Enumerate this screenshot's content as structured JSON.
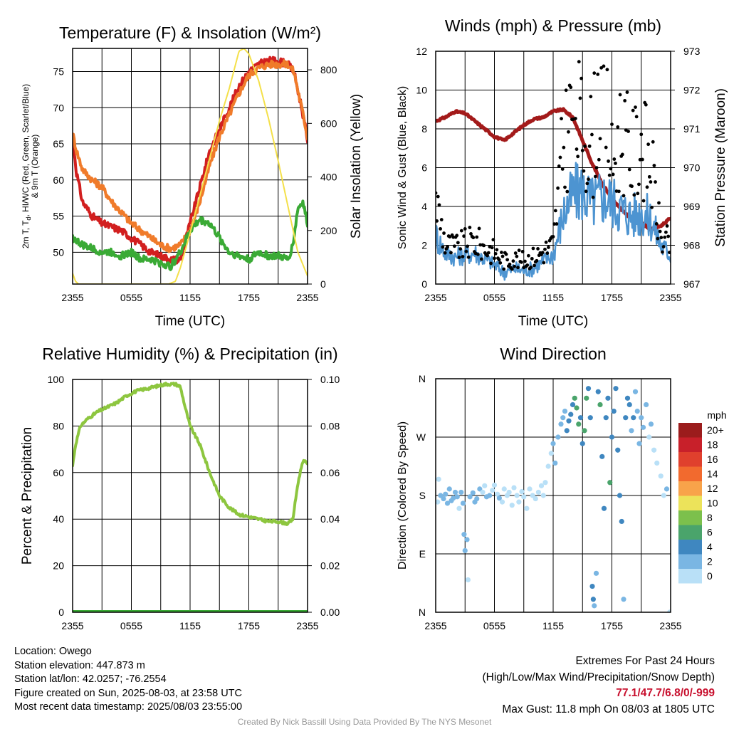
{
  "chart_data": [
    {
      "type": "line",
      "title": "Temperature (F) & Insolation (W/m²)",
      "xlabel": "Time (UTC)",
      "ylabel": "2m T, Td, HI/WC (Red, Green, Scarlet/Blue) & 9m T (Orange)",
      "ylabel_lines": [
        "2m T, T",
        "d",
        ", HI/WC (Red, Green, Scarlet/Blue)",
        "& 9m T (Orange)"
      ],
      "y2label": "Solar Insolation (Yellow)",
      "x_ticks": [
        "2355",
        "0555",
        "1155",
        "1755",
        "2355"
      ],
      "y_ticks": [
        50,
        55,
        60,
        65,
        70,
        75
      ],
      "y2_ticks": [
        0,
        200,
        400,
        600,
        800
      ],
      "ylim": [
        45.6,
        78.2
      ],
      "y2lim": [
        0,
        880
      ],
      "xlim_hours": [
        0,
        24
      ],
      "grid": true,
      "series": [
        {
          "color": "#d21f1f",
          "x": [
            0,
            0.4,
            1,
            2,
            3,
            4,
            5,
            6,
            7,
            8,
            9,
            10,
            11,
            12,
            13,
            14,
            15,
            16,
            17,
            18,
            19,
            20,
            21,
            22,
            22.6,
            23.4,
            24
          ],
          "values": [
            66,
            61,
            57,
            55,
            54,
            53.5,
            53,
            52,
            51,
            50,
            49.5,
            49,
            49,
            54,
            59,
            64,
            67,
            70,
            73,
            75,
            76,
            76.5,
            76.5,
            76,
            75,
            70,
            65.5
          ]
        },
        {
          "color": "#f07b2a",
          "x": [
            0,
            0.4,
            1,
            2,
            3,
            4,
            5,
            6,
            7,
            8,
            9,
            10,
            11,
            12,
            13,
            14,
            15,
            16,
            17,
            18,
            19,
            20,
            21,
            22,
            22.6,
            23.4,
            24
          ],
          "values": [
            66.5,
            64,
            61.5,
            60,
            59,
            57,
            55.5,
            54,
            53,
            52,
            51,
            50.5,
            51,
            53,
            57,
            62,
            66,
            69,
            72,
            74.5,
            75.5,
            76,
            76,
            76,
            75,
            70,
            66
          ]
        },
        {
          "color": "#3aaa35",
          "x": [
            0,
            1,
            2,
            3,
            4,
            5,
            6,
            7,
            8,
            9,
            10,
            11,
            12,
            13,
            14,
            15,
            16,
            17,
            18,
            19,
            20,
            21,
            22,
            22.5,
            23,
            23.5,
            24
          ],
          "values": [
            52,
            51,
            50.5,
            50,
            50,
            49.5,
            50,
            49,
            49,
            48.5,
            48,
            50,
            53,
            54.5,
            54,
            52,
            50,
            49.5,
            49,
            50,
            49.5,
            49.5,
            49,
            51,
            56,
            57,
            54
          ]
        },
        {
          "color": "#f4e04a",
          "axis": "y2",
          "x": [
            0,
            0.3,
            0.6,
            9.0,
            9.8,
            10.5,
            11.0,
            12,
            13,
            14,
            15,
            16,
            16.5,
            17,
            17.5,
            18,
            19,
            20,
            21,
            22,
            23,
            24
          ],
          "values": [
            40,
            10,
            0,
            0,
            0,
            10,
            60,
            190,
            330,
            470,
            610,
            730,
            800,
            870,
            880,
            860,
            760,
            620,
            460,
            290,
            120,
            30
          ]
        }
      ]
    },
    {
      "type": "line",
      "title": "Winds (mph) & Pressure (mb)",
      "xlabel": "Time (UTC)",
      "ylabel": "Sonic Wind & Gust (Blue, Black)",
      "y2label": "Station Pressure (Maroon)",
      "x_ticks": [
        "2355",
        "0555",
        "1155",
        "1755",
        "2355"
      ],
      "y_ticks": [
        0,
        2,
        4,
        6,
        8,
        10,
        12
      ],
      "y2_ticks": [
        967,
        968,
        969,
        970,
        971,
        972,
        973
      ],
      "ylim": [
        0,
        12
      ],
      "y2lim": [
        967,
        973
      ],
      "grid": true,
      "series": [
        {
          "color": "#a31a1a",
          "axis": "y2",
          "x": [
            0,
            1,
            2,
            3,
            4,
            5,
            6,
            7,
            8,
            9,
            10,
            11,
            12,
            13,
            14,
            15,
            16,
            17,
            18,
            19,
            20,
            21,
            22,
            23,
            24
          ],
          "values": [
            971.2,
            971.3,
            971.45,
            971.4,
            971.2,
            971.0,
            970.8,
            970.7,
            970.9,
            971.1,
            971.25,
            971.3,
            971.45,
            971.5,
            971.3,
            970.7,
            970.1,
            969.6,
            969.2,
            968.9,
            968.7,
            968.6,
            968.4,
            968.5,
            968.7
          ]
        },
        {
          "color": "#4d94d1",
          "x": [
            0,
            1,
            2,
            3,
            4,
            5,
            6,
            7,
            8,
            9,
            10,
            11,
            12,
            13,
            14,
            15,
            16,
            17,
            18,
            19,
            20,
            21,
            22,
            23,
            24
          ],
          "values": [
            2.5,
            1.6,
            1.4,
            1.5,
            1.6,
            1.3,
            1.0,
            0.6,
            0.8,
            0.7,
            0.8,
            1.2,
            1.5,
            3.5,
            4.6,
            4.8,
            4.2,
            4.5,
            4.3,
            3.8,
            3.5,
            3.7,
            3.3,
            2.0,
            1.5
          ]
        },
        {
          "color": "#000000",
          "style": "dots",
          "x": [
            0,
            1,
            2,
            3,
            4,
            5,
            6,
            7,
            8,
            9,
            10,
            11,
            12,
            13,
            14,
            15,
            16,
            17,
            18,
            19,
            20,
            21,
            22,
            23,
            24
          ],
          "values": [
            4.8,
            2.2,
            2.0,
            2.2,
            2.4,
            2.0,
            1.8,
            1.3,
            1.4,
            1.3,
            1.5,
            1.8,
            2.2,
            7.5,
            10.0,
            8.5,
            7.8,
            11.8,
            6.5,
            8.5,
            7.0,
            8.0,
            6.5,
            2.5,
            2.2
          ]
        }
      ]
    },
    {
      "type": "line",
      "title": "Relative Humidity (%) & Precipitation (in)",
      "ylabel": "Percent & Precipitation",
      "x_ticks": [
        "2355",
        "0555",
        "1155",
        "1755",
        "2355"
      ],
      "y_ticks": [
        0,
        20,
        40,
        60,
        80,
        100
      ],
      "y2_ticks": [
        "0.00",
        "0.02",
        "0.04",
        "0.06",
        "0.08",
        "0.10"
      ],
      "ylim": [
        0,
        100
      ],
      "y2lim": [
        0,
        0.1
      ],
      "grid": true,
      "series": [
        {
          "color": "#8dc63f",
          "x": [
            0,
            0.3,
            0.8,
            1.5,
            2.5,
            3.5,
            4.5,
            5.5,
            6.5,
            7.5,
            8.5,
            9.5,
            10.5,
            11.0,
            11.5,
            12,
            13,
            14,
            15,
            16,
            17,
            18,
            19,
            20,
            21,
            22,
            22.5,
            23,
            23.5,
            24
          ],
          "values": [
            63,
            72,
            80,
            83,
            86,
            88,
            90,
            93,
            95,
            96,
            97,
            98,
            98,
            97,
            88,
            80,
            72,
            60,
            50,
            45,
            42,
            41,
            40,
            39,
            39,
            38,
            40,
            55,
            65,
            64
          ]
        },
        {
          "color": "#3aaa35",
          "x": [
            0,
            24
          ],
          "values": [
            0,
            0
          ]
        }
      ]
    },
    {
      "type": "scatter",
      "title": "Wind Direction",
      "ylabel": "Direction (Colored By Speed)",
      "x_ticks": [
        "2355",
        "0555",
        "1155",
        "1755",
        "2355"
      ],
      "y_ticks": [
        "N",
        "E",
        "S",
        "W",
        "N"
      ],
      "ylim": [
        0,
        360
      ],
      "grid": true,
      "legend": {
        "title": "mph",
        "position": "right",
        "labels": [
          "20+",
          "18",
          "16",
          "14",
          "12",
          "10",
          "8",
          "6",
          "4",
          "2",
          "0"
        ],
        "colors": [
          "#9b1c1c",
          "#c8202a",
          "#e0402d",
          "#f26a2e",
          "#f8a34a",
          "#ece35a",
          "#7cc04c",
          "#4aa46b",
          "#3f87c0",
          "#7ab6e3",
          "#b9e0f7"
        ]
      },
      "points": [
        [
          0.2,
          170,
          0.5
        ],
        [
          0.3,
          205,
          0.3
        ],
        [
          0.5,
          180,
          1.5
        ],
        [
          0.8,
          175,
          1.5
        ],
        [
          1.0,
          182,
          2.0
        ],
        [
          1.2,
          168,
          1.2
        ],
        [
          1.4,
          190,
          1.0
        ],
        [
          1.6,
          172,
          1.8
        ],
        [
          1.8,
          176,
          2.2
        ],
        [
          2.0,
          185,
          1.0
        ],
        [
          2.2,
          178,
          1.5
        ],
        [
          2.4,
          160,
          0.8
        ],
        [
          2.6,
          185,
          2.0
        ],
        [
          2.8,
          168,
          2.5
        ],
        [
          2.9,
          120,
          1.5
        ],
        [
          3.0,
          95,
          1.0
        ],
        [
          3.2,
          112,
          1.2
        ],
        [
          3.3,
          50,
          0.8
        ],
        [
          3.5,
          178,
          1.6
        ],
        [
          3.8,
          184,
          2.0
        ],
        [
          4.0,
          170,
          2.5
        ],
        [
          4.2,
          175,
          1.5
        ],
        [
          4.5,
          190,
          1.0
        ],
        [
          4.8,
          185,
          0.5
        ],
        [
          5.0,
          195,
          0.6
        ],
        [
          5.2,
          178,
          1.4
        ],
        [
          5.5,
          180,
          1.0
        ],
        [
          5.8,
          188,
          0.8
        ],
        [
          6.0,
          196,
          0.5
        ],
        [
          6.3,
          182,
          0.8
        ],
        [
          6.5,
          176,
          1.0
        ],
        [
          6.8,
          170,
          0.6
        ],
        [
          7.0,
          190,
          0.9
        ],
        [
          7.3,
          180,
          0.4
        ],
        [
          7.5,
          185,
          0.6
        ],
        [
          7.8,
          165,
          0.3
        ],
        [
          8.0,
          192,
          0.7
        ],
        [
          8.3,
          180,
          0.4
        ],
        [
          8.5,
          170,
          0.8
        ],
        [
          8.8,
          186,
          0.5
        ],
        [
          9.0,
          178,
          0.6
        ],
        [
          9.3,
          160,
          0.4
        ],
        [
          9.6,
          190,
          0.5
        ],
        [
          9.9,
          180,
          0.6
        ],
        [
          10.2,
          175,
          0.5
        ],
        [
          10.5,
          185,
          0.4
        ],
        [
          10.8,
          195,
          0.7
        ],
        [
          11.0,
          180,
          0.5
        ],
        [
          11.2,
          200,
          0.6
        ],
        [
          11.5,
          225,
          0.8
        ],
        [
          11.8,
          245,
          0.7
        ],
        [
          12.0,
          260,
          1.0
        ],
        [
          12.2,
          230,
          1.2
        ],
        [
          12.5,
          270,
          1.4
        ],
        [
          12.8,
          290,
          1.6
        ],
        [
          13.0,
          300,
          2.0
        ],
        [
          13.2,
          310,
          2.5
        ],
        [
          13.4,
          280,
          3.0
        ],
        [
          13.6,
          295,
          3.5
        ],
        [
          13.8,
          305,
          4.5
        ],
        [
          14.0,
          320,
          4.8
        ],
        [
          14.2,
          330,
          5.5
        ],
        [
          14.4,
          315,
          6.0
        ],
        [
          14.6,
          290,
          5.0
        ],
        [
          14.8,
          300,
          4.0
        ],
        [
          15.0,
          260,
          3.5
        ],
        [
          15.2,
          280,
          6.5
        ],
        [
          15.4,
          330,
          5.0
        ],
        [
          15.6,
          345,
          4.5
        ],
        [
          15.8,
          300,
          3.0
        ],
        [
          16.0,
          40,
          3.5
        ],
        [
          16.1,
          20,
          3.0
        ],
        [
          16.2,
          10,
          2.5
        ],
        [
          16.4,
          60,
          2.5
        ],
        [
          16.6,
          340,
          3.5
        ],
        [
          16.8,
          320,
          5.5
        ],
        [
          17.0,
          240,
          4.5
        ],
        [
          17.2,
          160,
          4.0
        ],
        [
          17.4,
          300,
          3.5
        ],
        [
          17.6,
          330,
          4.5
        ],
        [
          17.8,
          200,
          6.0
        ],
        [
          18.0,
          270,
          4.2
        ],
        [
          18.2,
          310,
          3.8
        ],
        [
          18.4,
          345,
          4.0
        ],
        [
          18.6,
          250,
          3.5
        ],
        [
          18.8,
          180,
          3.0
        ],
        [
          19.0,
          140,
          3.2
        ],
        [
          19.2,
          20,
          2.5
        ],
        [
          19.4,
          300,
          4.2
        ],
        [
          19.6,
          330,
          3.6
        ],
        [
          19.8,
          320,
          3.0
        ],
        [
          20.0,
          280,
          2.5
        ],
        [
          20.2,
          300,
          3.5
        ],
        [
          20.4,
          340,
          2.8
        ],
        [
          20.6,
          310,
          2.2
        ],
        [
          20.8,
          260,
          1.8
        ],
        [
          21.0,
          300,
          1.5
        ],
        [
          21.2,
          285,
          1.2
        ],
        [
          21.5,
          320,
          1.0
        ],
        [
          21.8,
          270,
          0.8
        ],
        [
          22.0,
          290,
          1.2
        ],
        [
          22.3,
          250,
          0.6
        ],
        [
          22.6,
          230,
          0.5
        ],
        [
          23.0,
          210,
          0.4
        ],
        [
          23.3,
          180,
          0.8
        ],
        [
          23.6,
          190,
          1.5
        ],
        [
          23.9,
          0,
          0.6
        ]
      ]
    }
  ],
  "info": {
    "location": "Location: Owego",
    "elevation": "Station elevation: 447.873 m",
    "latlon": "Station lat/lon: 42.0257; -76.2554",
    "created": "Figure created on Sun, 2025-08-03, at 23:58 UTC",
    "recent": "Most recent data timestamp: 2025/08/03 23:55:00"
  },
  "extremes": {
    "title": "Extremes For Past 24 Hours",
    "subtitle": "(High/Low/Max Wind/Precipitation/Snow Depth)",
    "values": "77.1/47.7/6.8/0/-999",
    "gust": "Max Gust: 11.8 mph On 08/03 at 1805 UTC"
  },
  "credit": "Created By Nick Bassill Using Data Provided By The NYS Mesonet"
}
